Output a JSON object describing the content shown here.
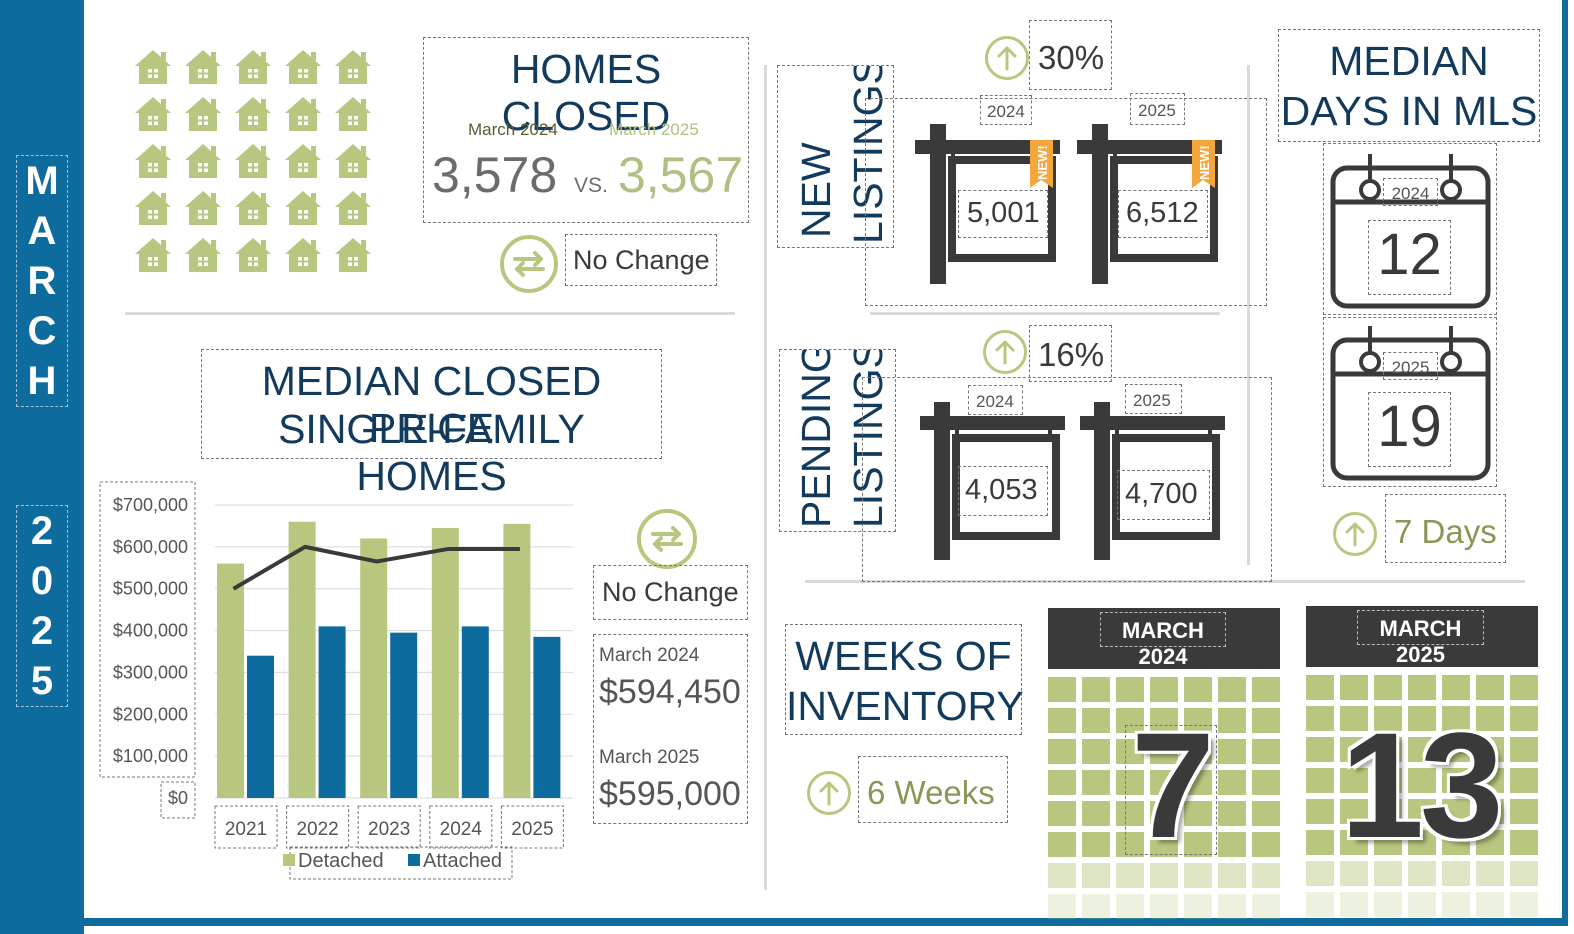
{
  "sidebar": {
    "month_letters": [
      "M",
      "A",
      "R",
      "C",
      "H"
    ],
    "year_digits": [
      "2",
      "0",
      "2",
      "5"
    ]
  },
  "homes_closed": {
    "title": "HOMES CLOSED",
    "label_2024": "March 2024",
    "label_2025": "March 2025",
    "value_2024": "3,578",
    "vs": "VS.",
    "value_2025": "3,567",
    "change": "No Change",
    "icon": "swap-arrows-icon"
  },
  "price": {
    "title_line1": "MEDIAN CLOSED PRICE",
    "title_line2": "SINGLE-FAMILY HOMES",
    "change": "No Change",
    "label_2024": "March 2024",
    "value_2024": "$594,450",
    "label_2025": "March 2025",
    "value_2025": "$595,000"
  },
  "chart_data": {
    "type": "bar",
    "categories": [
      "2021",
      "2022",
      "2023",
      "2024",
      "2025"
    ],
    "series": [
      {
        "name": "Detached",
        "values": [
          560000,
          660000,
          620000,
          645000,
          655000
        ],
        "color": "#b7c77f"
      },
      {
        "name": "Attached",
        "values": [
          340000,
          410000,
          395000,
          410000,
          385000
        ],
        "color": "#0e6b9e"
      }
    ],
    "line": {
      "values": [
        500000,
        600000,
        565000,
        595000,
        595000
      ],
      "color": "#3a3a3a"
    },
    "y_ticks": [
      "$700,000",
      "$600,000",
      "$500,000",
      "$400,000",
      "$300,000",
      "$200,000",
      "$100,000",
      "$0"
    ],
    "ylim": [
      0,
      700000
    ],
    "legend_position": "bottom",
    "grid": true
  },
  "new_listings": {
    "title_line1": "NEW",
    "title_line2": "LISTINGS",
    "change": "30%",
    "year_2024": "2024",
    "year_2025": "2025",
    "value_2024": "5,001",
    "value_2025": "6,512",
    "ribbon": "NEW!"
  },
  "pending_listings": {
    "title_line1": "PENDING",
    "title_line2": "LISTINGS",
    "change": "16%",
    "year_2024": "2024",
    "year_2025": "2025",
    "value_2024": "4,053",
    "value_2025": "4,700"
  },
  "days_in_mls": {
    "title_line1": "MEDIAN",
    "title_line2": "DAYS IN MLS",
    "year_2024": "2024",
    "value_2024": "12",
    "year_2025": "2025",
    "value_2025": "19",
    "change": "7 Days"
  },
  "weeks_inventory": {
    "title_line1": "WEEKS OF",
    "title_line2": "INVENTORY",
    "change": "6 Weeks",
    "header_2024": "MARCH 2024",
    "value_2024": "7",
    "header_2025": "MARCH 2025",
    "value_2025": "13"
  },
  "colors": {
    "navy": "#123a5c",
    "blue": "#0e6b9e",
    "green": "#b7c77f",
    "olive": "#8d9556",
    "dark": "#3a3a3a"
  }
}
